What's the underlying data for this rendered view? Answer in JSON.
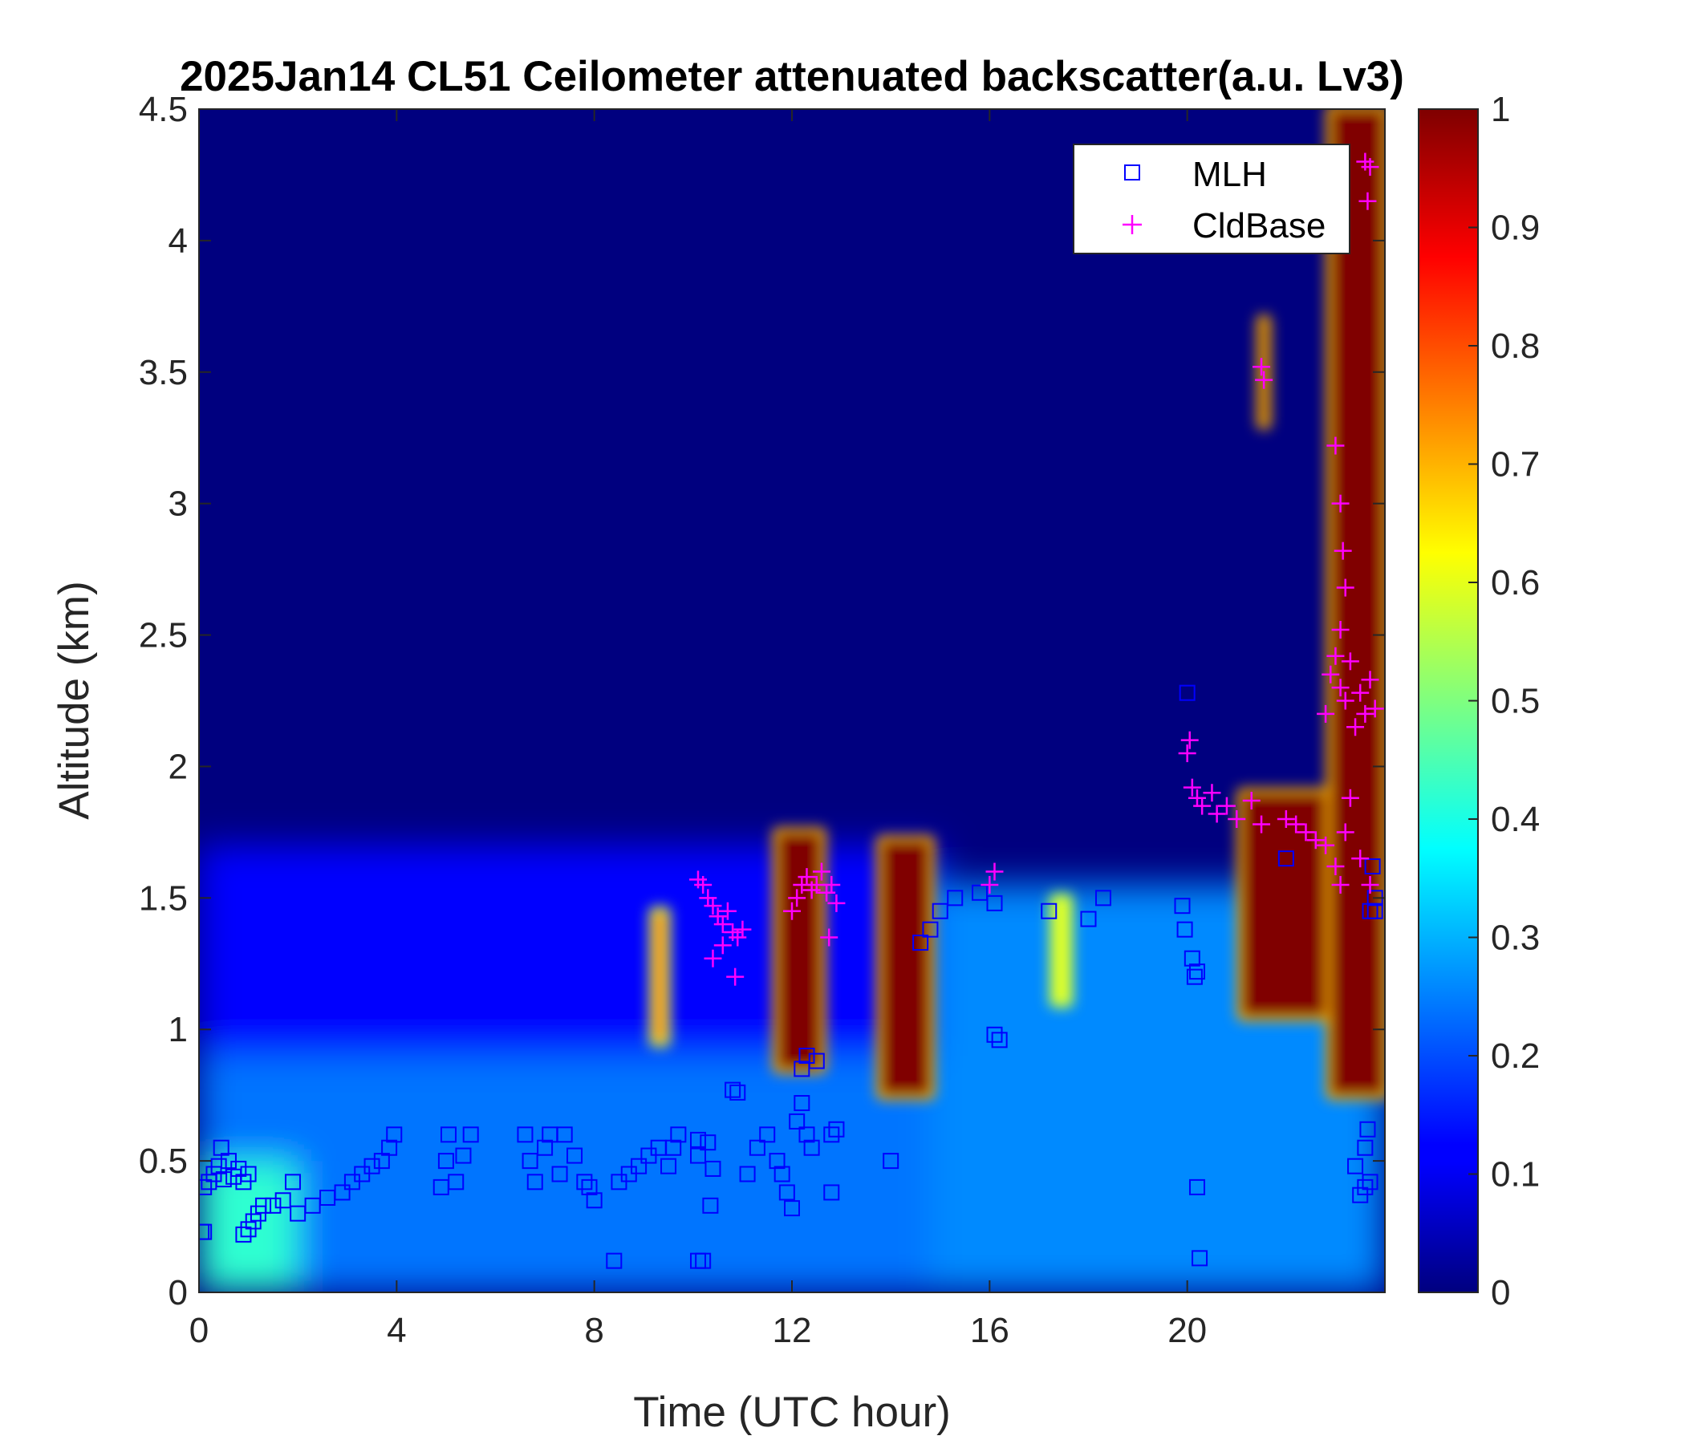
{
  "chart_data": {
    "type": "heatmap",
    "title": "2025Jan14 CL51 Ceilometer attenuated backscatter(a.u. Lv3)",
    "xlabel": "Time (UTC hour)",
    "ylabel": "Altitude (km)",
    "xlim": [
      0,
      24
    ],
    "ylim": [
      0,
      4.5
    ],
    "xticks": [
      0,
      4,
      8,
      12,
      16,
      20
    ],
    "xtick_labels": [
      "0",
      "4",
      "8",
      "12",
      "16",
      "20"
    ],
    "yticks": [
      0,
      0.5,
      1,
      1.5,
      2,
      2.5,
      3,
      3.5,
      4,
      4.5
    ],
    "ytick_labels": [
      "0",
      "0.5",
      "1",
      "1.5",
      "2",
      "2.5",
      "3",
      "3.5",
      "4",
      "4.5"
    ],
    "colorbar": {
      "colormap": "jet",
      "range": [
        0,
        1
      ],
      "ticks": [
        0,
        0.1,
        0.2,
        0.3,
        0.4,
        0.5,
        0.6,
        0.7,
        0.8,
        0.9,
        1
      ],
      "tick_labels": [
        "0",
        "0.1",
        "0.2",
        "0.3",
        "0.4",
        "0.5",
        "0.6",
        "0.7",
        "0.8",
        "0.9",
        "1"
      ]
    },
    "legend": {
      "placement": "top-right",
      "entries": [
        {
          "name": "MLH",
          "marker": "square",
          "color": "#0000FF"
        },
        {
          "name": "CldBase",
          "marker": "plus",
          "color": "#FF00FF"
        }
      ]
    },
    "background_regions": [
      {
        "x": [
          0,
          24
        ],
        "y": [
          0,
          1.5
        ],
        "value": 0.24
      },
      {
        "x": [
          0,
          15
        ],
        "y": [
          0.9,
          1.7
        ],
        "value": 0.13
      },
      {
        "x": [
          0,
          2
        ],
        "y": [
          0,
          0.5
        ],
        "value": 0.42
      },
      {
        "x": [
          14.8,
          24
        ],
        "y": [
          0,
          1.55
        ],
        "value": 0.26
      }
    ],
    "high_backscatter_regions": [
      {
        "x": [
          9.2,
          9.45
        ],
        "y": [
          0.95,
          1.45
        ],
        "value": 0.75
      },
      {
        "x": [
          11.7,
          12.6
        ],
        "y": [
          0.85,
          1.75
        ],
        "value": 1.0
      },
      {
        "x": [
          13.8,
          14.8
        ],
        "y": [
          0.75,
          1.72
        ],
        "value": 1.0
      },
      {
        "x": [
          17.3,
          17.6
        ],
        "y": [
          1.1,
          1.5
        ],
        "value": 0.6
      },
      {
        "x": [
          21.1,
          22.9
        ],
        "y": [
          1.05,
          1.9
        ],
        "value": 1.0
      },
      {
        "x": [
          22.9,
          24
        ],
        "y": [
          0.75,
          4.5
        ],
        "value": 1.0
      },
      {
        "x": [
          21.5,
          21.6
        ],
        "y": [
          3.3,
          3.7
        ],
        "value": 1.0
      }
    ],
    "series": [
      {
        "name": "MLH",
        "points": [
          [
            0.05,
            0.23
          ],
          [
            0.1,
            0.23
          ],
          [
            0.1,
            0.4
          ],
          [
            0.2,
            0.42
          ],
          [
            0.3,
            0.45
          ],
          [
            0.4,
            0.48
          ],
          [
            0.45,
            0.55
          ],
          [
            0.5,
            0.43
          ],
          [
            0.6,
            0.5
          ],
          [
            0.7,
            0.44
          ],
          [
            0.8,
            0.47
          ],
          [
            0.9,
            0.42
          ],
          [
            1.0,
            0.45
          ],
          [
            0.9,
            0.22
          ],
          [
            1.0,
            0.24
          ],
          [
            1.1,
            0.27
          ],
          [
            1.2,
            0.3
          ],
          [
            1.3,
            0.33
          ],
          [
            1.5,
            0.33
          ],
          [
            1.7,
            0.35
          ],
          [
            1.9,
            0.42
          ],
          [
            2.0,
            0.3
          ],
          [
            2.3,
            0.33
          ],
          [
            2.6,
            0.36
          ],
          [
            2.9,
            0.38
          ],
          [
            3.1,
            0.42
          ],
          [
            3.3,
            0.45
          ],
          [
            3.5,
            0.48
          ],
          [
            3.7,
            0.5
          ],
          [
            3.85,
            0.55
          ],
          [
            3.95,
            0.6
          ],
          [
            4.9,
            0.4
          ],
          [
            5.0,
            0.5
          ],
          [
            5.05,
            0.6
          ],
          [
            5.2,
            0.42
          ],
          [
            5.35,
            0.52
          ],
          [
            5.5,
            0.6
          ],
          [
            6.6,
            0.6
          ],
          [
            6.7,
            0.5
          ],
          [
            6.8,
            0.42
          ],
          [
            7.0,
            0.55
          ],
          [
            7.1,
            0.6
          ],
          [
            7.3,
            0.45
          ],
          [
            7.4,
            0.6
          ],
          [
            7.6,
            0.52
          ],
          [
            7.8,
            0.42
          ],
          [
            7.9,
            0.4
          ],
          [
            8.0,
            0.35
          ],
          [
            8.4,
            0.12
          ],
          [
            8.5,
            0.42
          ],
          [
            8.7,
            0.45
          ],
          [
            8.9,
            0.48
          ],
          [
            9.1,
            0.52
          ],
          [
            9.3,
            0.55
          ],
          [
            9.5,
            0.48
          ],
          [
            9.6,
            0.55
          ],
          [
            9.7,
            0.6
          ],
          [
            10.1,
            0.12
          ],
          [
            10.2,
            0.12
          ],
          [
            10.1,
            0.52
          ],
          [
            10.1,
            0.58
          ],
          [
            10.3,
            0.57
          ],
          [
            10.4,
            0.47
          ],
          [
            10.35,
            0.33
          ],
          [
            10.8,
            0.77
          ],
          [
            10.9,
            0.76
          ],
          [
            11.1,
            0.45
          ],
          [
            11.3,
            0.55
          ],
          [
            11.5,
            0.6
          ],
          [
            11.7,
            0.5
          ],
          [
            11.8,
            0.45
          ],
          [
            11.9,
            0.38
          ],
          [
            12.0,
            0.32
          ],
          [
            12.1,
            0.65
          ],
          [
            12.2,
            0.72
          ],
          [
            12.2,
            0.85
          ],
          [
            12.3,
            0.9
          ],
          [
            12.3,
            0.6
          ],
          [
            12.4,
            0.55
          ],
          [
            12.5,
            0.88
          ],
          [
            12.8,
            0.6
          ],
          [
            12.9,
            0.62
          ],
          [
            12.8,
            0.38
          ],
          [
            14.0,
            0.5
          ],
          [
            14.6,
            1.33
          ],
          [
            14.8,
            1.38
          ],
          [
            15.0,
            1.45
          ],
          [
            15.3,
            1.5
          ],
          [
            15.8,
            1.52
          ],
          [
            16.1,
            1.48
          ],
          [
            16.1,
            0.98
          ],
          [
            16.2,
            0.96
          ],
          [
            17.2,
            1.45
          ],
          [
            18.0,
            1.42
          ],
          [
            18.3,
            1.5
          ],
          [
            20.0,
            2.28
          ],
          [
            19.9,
            1.47
          ],
          [
            19.95,
            1.38
          ],
          [
            20.1,
            1.27
          ],
          [
            20.15,
            1.2
          ],
          [
            20.2,
            1.22
          ],
          [
            20.2,
            0.4
          ],
          [
            20.25,
            0.13
          ],
          [
            22.0,
            1.65
          ],
          [
            23.4,
            0.48
          ],
          [
            23.5,
            0.37
          ],
          [
            23.6,
            0.4
          ],
          [
            23.6,
            0.55
          ],
          [
            23.65,
            0.62
          ],
          [
            23.7,
            0.42
          ],
          [
            23.7,
            1.45
          ],
          [
            23.8,
            1.45
          ],
          [
            23.75,
            1.62
          ],
          [
            23.8,
            1.5
          ]
        ]
      },
      {
        "name": "CldBase",
        "points": [
          [
            10.1,
            1.57
          ],
          [
            10.2,
            1.55
          ],
          [
            10.3,
            1.5
          ],
          [
            10.4,
            1.47
          ],
          [
            10.5,
            1.43
          ],
          [
            10.6,
            1.4
          ],
          [
            10.7,
            1.45
          ],
          [
            10.8,
            1.37
          ],
          [
            10.9,
            1.35
          ],
          [
            11.0,
            1.38
          ],
          [
            10.4,
            1.27
          ],
          [
            10.6,
            1.32
          ],
          [
            10.85,
            1.2
          ],
          [
            12.0,
            1.45
          ],
          [
            12.1,
            1.5
          ],
          [
            12.2,
            1.55
          ],
          [
            12.3,
            1.58
          ],
          [
            12.4,
            1.53
          ],
          [
            12.5,
            1.55
          ],
          [
            12.6,
            1.6
          ],
          [
            12.7,
            1.52
          ],
          [
            12.8,
            1.55
          ],
          [
            12.9,
            1.48
          ],
          [
            12.75,
            1.35
          ],
          [
            16.0,
            1.55
          ],
          [
            16.1,
            1.6
          ],
          [
            20.0,
            2.05
          ],
          [
            20.05,
            2.1
          ],
          [
            20.1,
            1.92
          ],
          [
            20.2,
            1.88
          ],
          [
            20.3,
            1.85
          ],
          [
            20.5,
            1.9
          ],
          [
            20.6,
            1.82
          ],
          [
            20.8,
            1.85
          ],
          [
            21.0,
            1.8
          ],
          [
            21.3,
            1.87
          ],
          [
            21.5,
            1.78
          ],
          [
            21.5,
            3.52
          ],
          [
            21.55,
            3.47
          ],
          [
            22.0,
            1.8
          ],
          [
            22.2,
            1.78
          ],
          [
            22.4,
            1.75
          ],
          [
            22.6,
            1.72
          ],
          [
            22.8,
            1.7
          ],
          [
            23.0,
            1.62
          ],
          [
            23.1,
            1.55
          ],
          [
            23.2,
            1.75
          ],
          [
            22.8,
            2.2
          ],
          [
            22.9,
            2.35
          ],
          [
            23.0,
            2.42
          ],
          [
            23.1,
            2.3
          ],
          [
            23.2,
            2.25
          ],
          [
            23.3,
            2.4
          ],
          [
            23.4,
            2.15
          ],
          [
            23.5,
            2.28
          ],
          [
            23.6,
            2.2
          ],
          [
            23.7,
            2.33
          ],
          [
            23.8,
            2.22
          ],
          [
            23.0,
            3.22
          ],
          [
            23.1,
            3.0
          ],
          [
            23.15,
            2.82
          ],
          [
            23.2,
            2.68
          ],
          [
            23.1,
            2.52
          ],
          [
            23.6,
            4.3
          ],
          [
            23.7,
            4.28
          ],
          [
            23.65,
            4.15
          ],
          [
            23.5,
            1.65
          ],
          [
            23.7,
            1.55
          ],
          [
            23.3,
            1.88
          ]
        ]
      }
    ]
  }
}
